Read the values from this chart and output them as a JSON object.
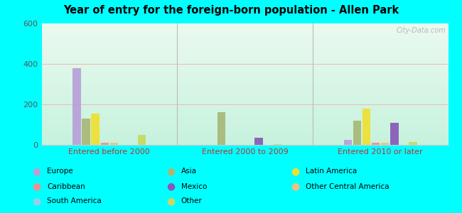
{
  "title": "Year of entry for the foreign-born population - Allen Park",
  "categories": [
    "Entered before 2000",
    "Entered 2000 to 2009",
    "Entered 2010 or later"
  ],
  "series_order": [
    "Europe",
    "Asia",
    "Latin America",
    "Caribbean",
    "Mexico",
    "Other Central America",
    "South America",
    "Other"
  ],
  "series": {
    "Europe": [
      380,
      0,
      25
    ],
    "Caribbean": [
      10,
      0,
      10
    ],
    "South America": [
      0,
      0,
      0
    ],
    "Asia": [
      130,
      160,
      120
    ],
    "Mexico": [
      0,
      35,
      110
    ],
    "Other": [
      50,
      5,
      15
    ],
    "Latin America": [
      155,
      0,
      180
    ],
    "Other Central America": [
      10,
      0,
      10
    ]
  },
  "colors": {
    "Europe": "#b8a0d8",
    "Caribbean": "#f09090",
    "South America": "#90d0e8",
    "Asia": "#a8b878",
    "Mexico": "#8858b8",
    "Other": "#c8d860",
    "Latin America": "#f0e030",
    "Other Central America": "#f0c080"
  },
  "ylim": [
    0,
    600
  ],
  "yticks": [
    0,
    200,
    400,
    600
  ],
  "bg_color": "#00ffff",
  "watermark": "City-Data.com"
}
